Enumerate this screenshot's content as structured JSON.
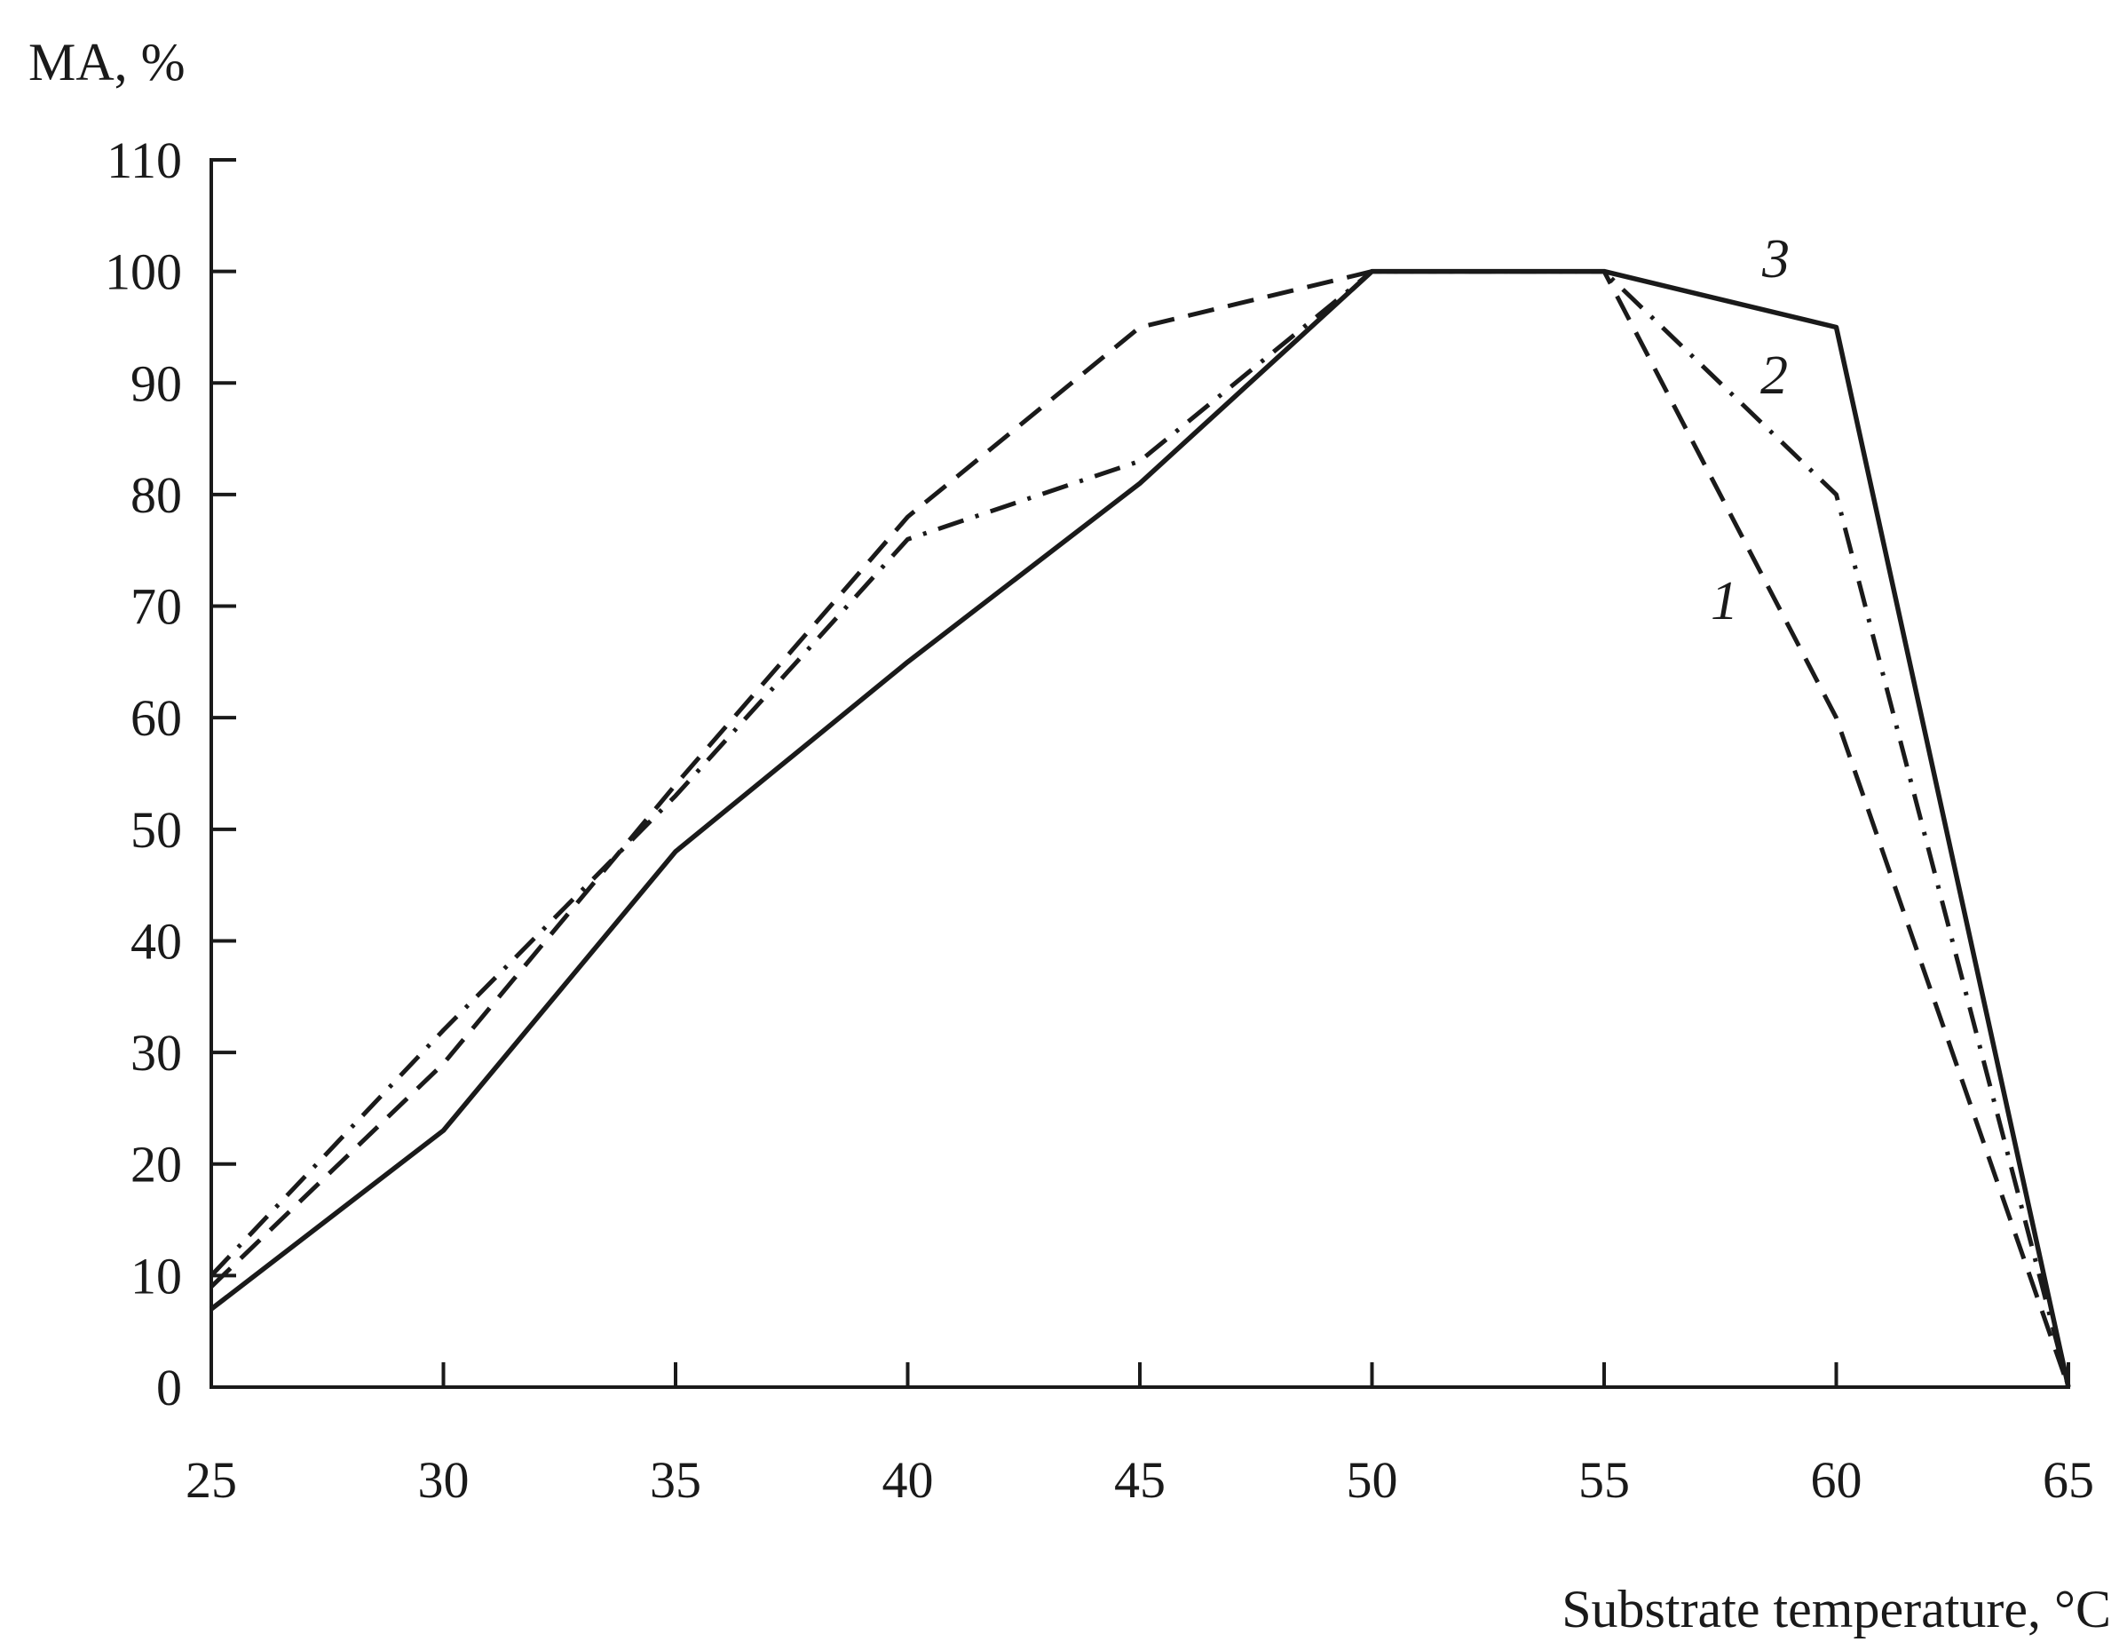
{
  "chart_data": {
    "type": "line",
    "title": "",
    "xlabel": "Substrate temperature, °C",
    "ylabel": "MA, %",
    "xlim": [
      25,
      65
    ],
    "ylim": [
      0,
      110
    ],
    "x_ticks": [
      "25",
      "30",
      "35",
      "40",
      "45",
      "50",
      "55",
      "60",
      "65"
    ],
    "y_ticks": [
      "0",
      "10",
      "20",
      "30",
      "40",
      "50",
      "60",
      "70",
      "80",
      "90",
      "100",
      "110"
    ],
    "grid": false,
    "legend": "none",
    "x": [
      25,
      30,
      35,
      40,
      45,
      50,
      55,
      60,
      65
    ],
    "series": [
      {
        "name": "1",
        "style": "dashed",
        "color": "#1a1a1a",
        "values": [
          9,
          29,
          54,
          78,
          95,
          100,
          100,
          60,
          0
        ]
      },
      {
        "name": "2",
        "style": "dash-dot",
        "color": "#1a1a1a",
        "values": [
          10,
          32,
          53,
          76,
          83,
          100,
          100,
          80,
          0
        ]
      },
      {
        "name": "3",
        "style": "solid",
        "color": "#1a1a1a",
        "values": [
          7,
          23,
          48,
          65,
          81,
          100,
          100,
          95,
          0
        ]
      }
    ]
  }
}
